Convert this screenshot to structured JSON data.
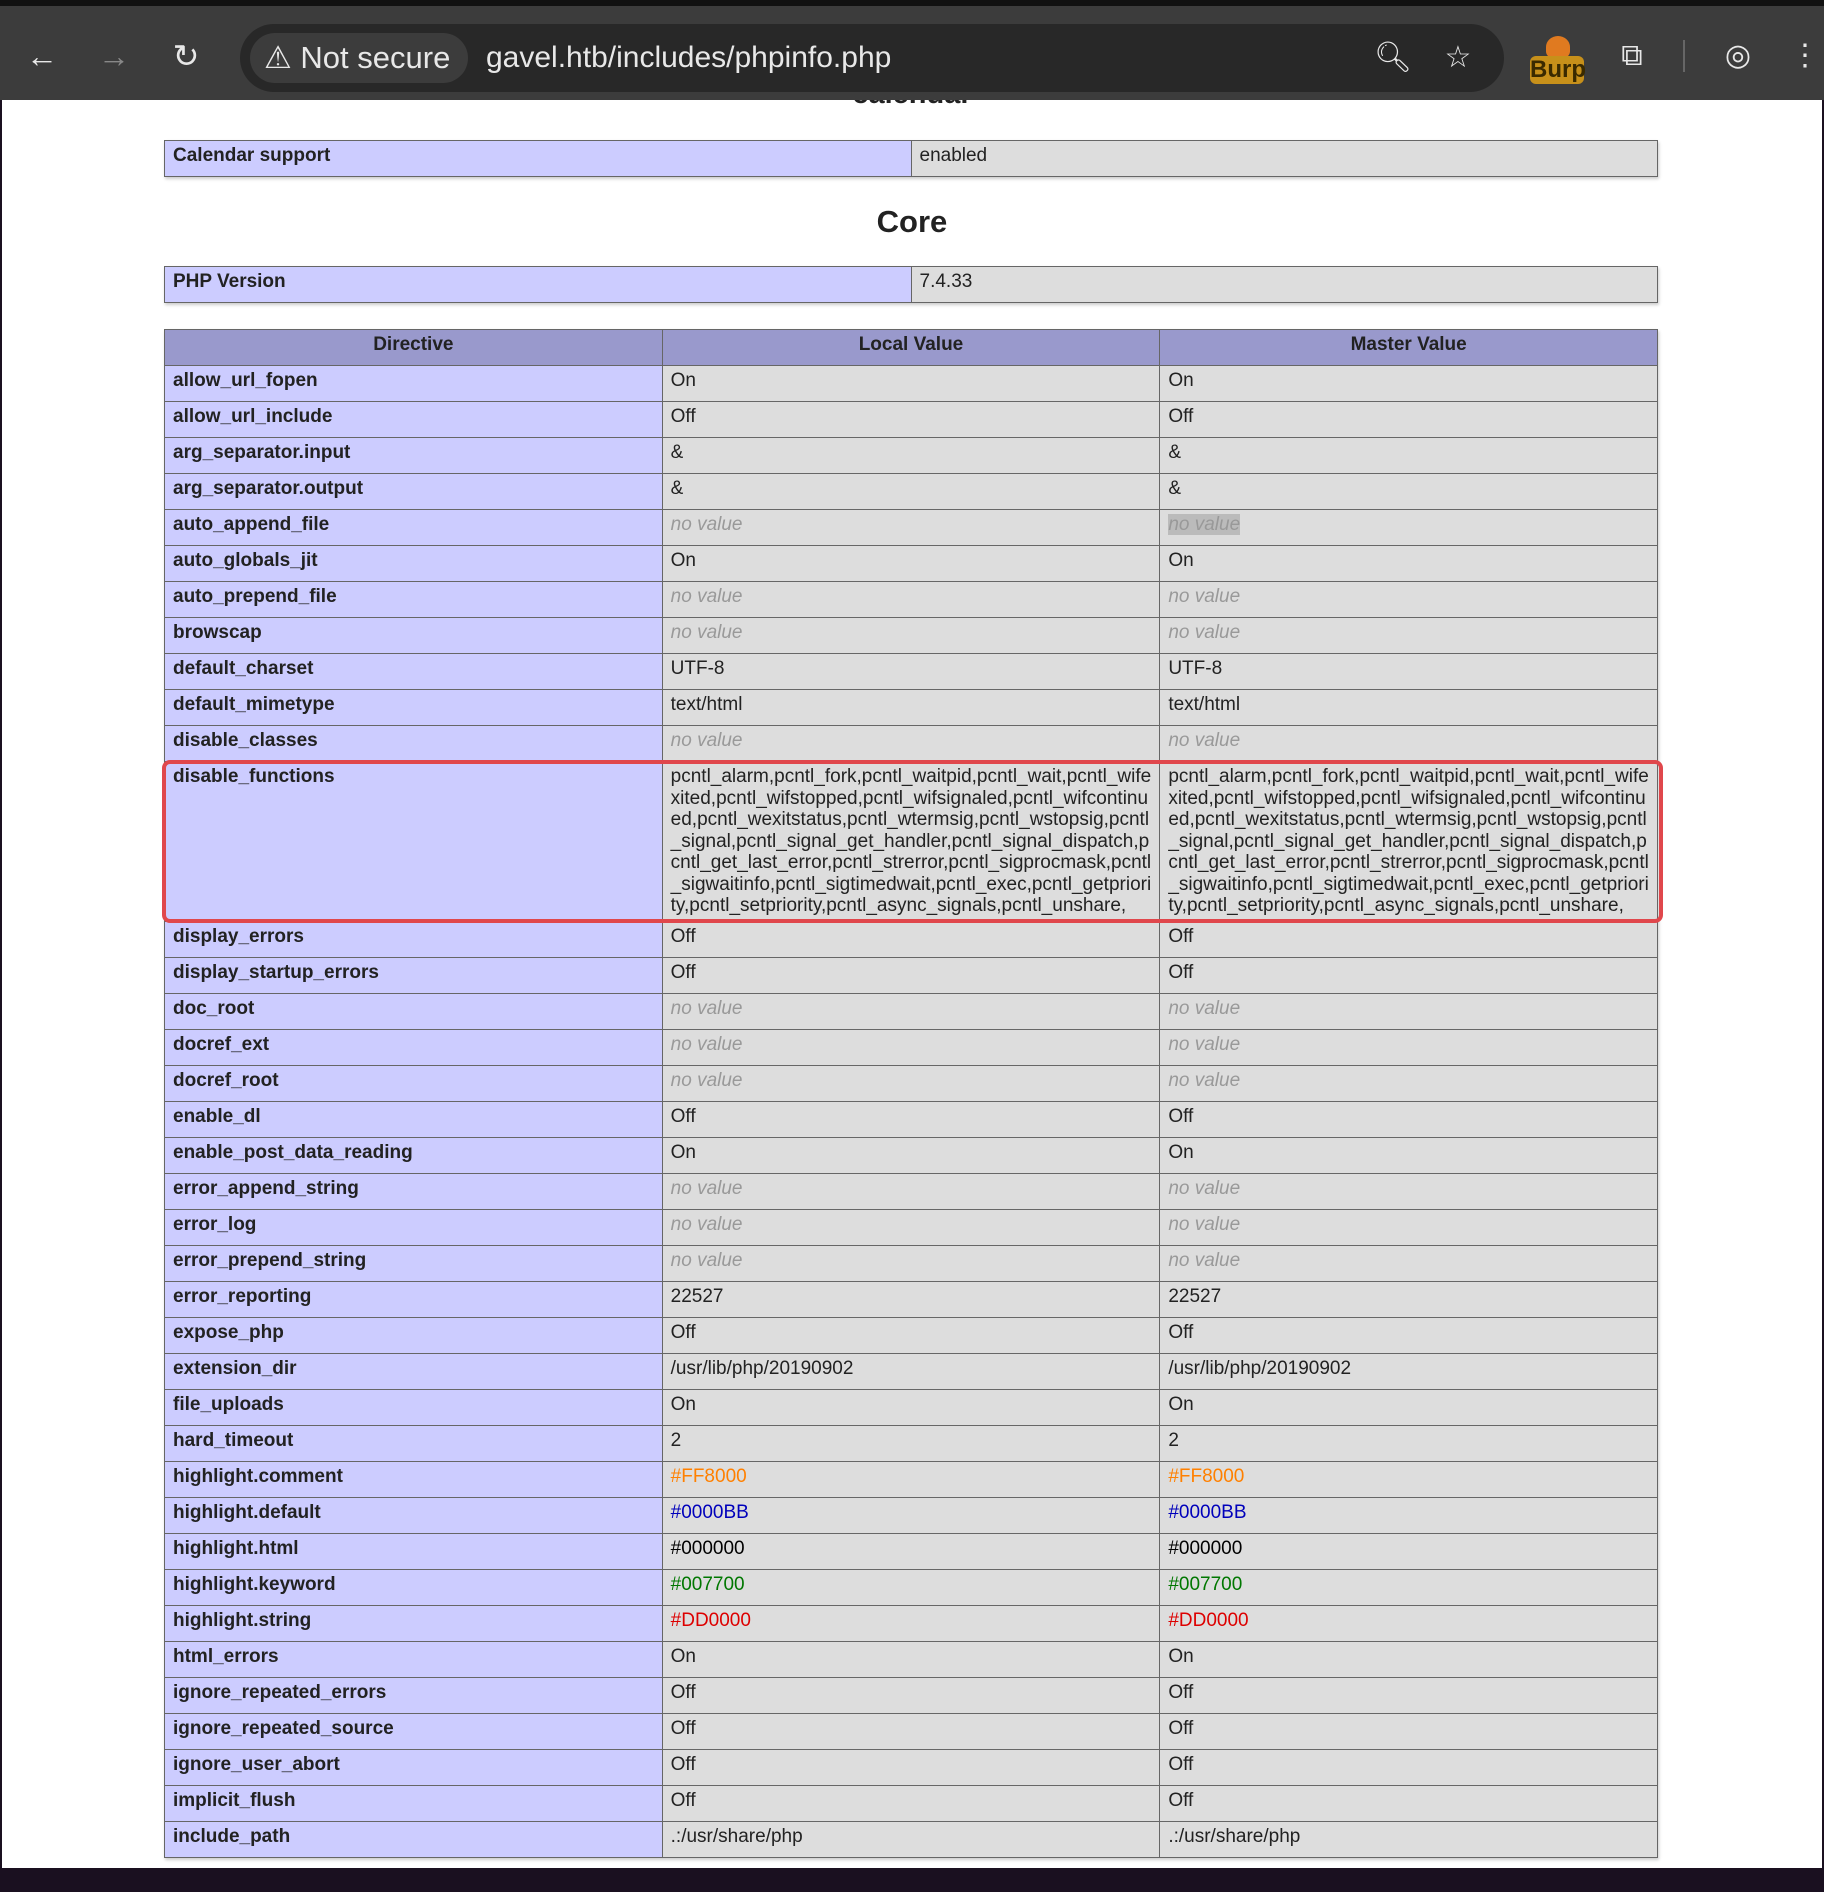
{
  "browser": {
    "security_label": "Not secure",
    "url": "gavel.htb/includes/phpinfo.php",
    "burp_label": "Burp"
  },
  "page": {
    "calendar_heading": "calendar",
    "calendar_rows": [
      [
        "Calendar support",
        "enabled"
      ]
    ],
    "core_heading": "Core",
    "core_info_rows": [
      [
        "PHP Version",
        "7.4.33"
      ]
    ],
    "directive_headers": [
      "Directive",
      "Local Value",
      "Master Value"
    ],
    "highlighted_directive": "disable_functions",
    "highlight_color": "#E0474C",
    "directives": [
      {
        "name": "allow_url_fopen",
        "local": "On",
        "master": "On"
      },
      {
        "name": "allow_url_include",
        "local": "Off",
        "master": "Off"
      },
      {
        "name": "arg_separator.input",
        "local": "&",
        "master": "&"
      },
      {
        "name": "arg_separator.output",
        "local": "&",
        "master": "&"
      },
      {
        "name": "auto_append_file",
        "local": "no value",
        "master": "no value",
        "no_value": true,
        "master_selected": true
      },
      {
        "name": "auto_globals_jit",
        "local": "On",
        "master": "On"
      },
      {
        "name": "auto_prepend_file",
        "local": "no value",
        "master": "no value",
        "no_value": true
      },
      {
        "name": "browscap",
        "local": "no value",
        "master": "no value",
        "no_value": true
      },
      {
        "name": "default_charset",
        "local": "UTF-8",
        "master": "UTF-8"
      },
      {
        "name": "default_mimetype",
        "local": "text/html",
        "master": "text/html"
      },
      {
        "name": "disable_classes",
        "local": "no value",
        "master": "no value",
        "no_value": true
      },
      {
        "name": "disable_functions",
        "local": "pcntl_alarm,pcntl_fork,pcntl_waitpid,pcntl_wait,pcntl_wifexited,pcntl_wifstopped,pcntl_wifsignaled,pcntl_wifcontinued,pcntl_wexitstatus,pcntl_wtermsig,pcntl_wstopsig,pcntl_signal,pcntl_signal_get_handler,pcntl_signal_dispatch,pcntl_get_last_error,pcntl_strerror,pcntl_sigprocmask,pcntl_sigwaitinfo,pcntl_sigtimedwait,pcntl_exec,pcntl_getpriority,pcntl_setpriority,pcntl_async_signals,pcntl_unshare,",
        "master": "pcntl_alarm,pcntl_fork,pcntl_waitpid,pcntl_wait,pcntl_wifexited,pcntl_wifstopped,pcntl_wifsignaled,pcntl_wifcontinued,pcntl_wexitstatus,pcntl_wtermsig,pcntl_wstopsig,pcntl_signal,pcntl_signal_get_handler,pcntl_signal_dispatch,pcntl_get_last_error,pcntl_strerror,pcntl_sigprocmask,pcntl_sigwaitinfo,pcntl_sigtimedwait,pcntl_exec,pcntl_getpriority,pcntl_setpriority,pcntl_async_signals,pcntl_unshare,"
      },
      {
        "name": "display_errors",
        "local": "Off",
        "master": "Off"
      },
      {
        "name": "display_startup_errors",
        "local": "Off",
        "master": "Off"
      },
      {
        "name": "doc_root",
        "local": "no value",
        "master": "no value",
        "no_value": true
      },
      {
        "name": "docref_ext",
        "local": "no value",
        "master": "no value",
        "no_value": true
      },
      {
        "name": "docref_root",
        "local": "no value",
        "master": "no value",
        "no_value": true
      },
      {
        "name": "enable_dl",
        "local": "Off",
        "master": "Off"
      },
      {
        "name": "enable_post_data_reading",
        "local": "On",
        "master": "On"
      },
      {
        "name": "error_append_string",
        "local": "no value",
        "master": "no value",
        "no_value": true
      },
      {
        "name": "error_log",
        "local": "no value",
        "master": "no value",
        "no_value": true
      },
      {
        "name": "error_prepend_string",
        "local": "no value",
        "master": "no value",
        "no_value": true
      },
      {
        "name": "error_reporting",
        "local": "22527",
        "master": "22527"
      },
      {
        "name": "expose_php",
        "local": "Off",
        "master": "Off"
      },
      {
        "name": "extension_dir",
        "local": "/usr/lib/php/20190902",
        "master": "/usr/lib/php/20190902"
      },
      {
        "name": "file_uploads",
        "local": "On",
        "master": "On"
      },
      {
        "name": "hard_timeout",
        "local": "2",
        "master": "2"
      },
      {
        "name": "highlight.comment",
        "local": "#FF8000",
        "master": "#FF8000",
        "color": "#FF8000"
      },
      {
        "name": "highlight.default",
        "local": "#0000BB",
        "master": "#0000BB",
        "color": "#0000BB"
      },
      {
        "name": "highlight.html",
        "local": "#000000",
        "master": "#000000",
        "color": "#000000"
      },
      {
        "name": "highlight.keyword",
        "local": "#007700",
        "master": "#007700",
        "color": "#007700"
      },
      {
        "name": "highlight.string",
        "local": "#DD0000",
        "master": "#DD0000",
        "color": "#DD0000"
      },
      {
        "name": "html_errors",
        "local": "On",
        "master": "On"
      },
      {
        "name": "ignore_repeated_errors",
        "local": "Off",
        "master": "Off"
      },
      {
        "name": "ignore_repeated_source",
        "local": "Off",
        "master": "Off"
      },
      {
        "name": "ignore_user_abort",
        "local": "Off",
        "master": "Off"
      },
      {
        "name": "implicit_flush",
        "local": "Off",
        "master": "Off"
      },
      {
        "name": "include_path",
        "local": ".:/usr/share/php",
        "master": ".:/usr/share/php"
      }
    ]
  }
}
